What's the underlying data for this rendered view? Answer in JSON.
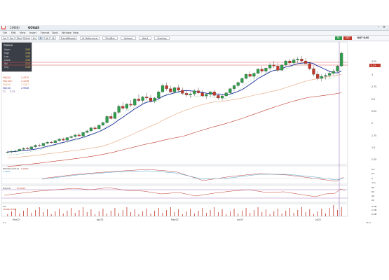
{
  "window": {
    "title": "1(NSK)",
    "symbol": "GOGAS",
    "tabs": [
      "1m",
      "5m",
      "15m",
      "30m",
      "1h",
      "D",
      "W",
      "M"
    ],
    "timeframe": "D",
    "menu": [
      "File",
      "Edit",
      "View",
      "Insert",
      "Format",
      "Tools",
      "Window",
      "Help"
    ]
  },
  "toolbar": {
    "mode_label": "TrendWizard",
    "indicator_labels": [
      "Sr Reference",
      "Tick/Bar",
      "Volume",
      "Alert",
      "Overlay"
    ],
    "right_tag_green": "BL",
    "right_tag_red": "SKT",
    "right_label": "NAT GAS"
  },
  "info_panel": {
    "symbol": "TWAUX",
    "rows": [
      {
        "label": "Open",
        "value": "3.85"
      },
      {
        "label": "High",
        "value": "3.98"
      },
      {
        "label": "Low",
        "value": "3.82"
      },
      {
        "label": "Close",
        "value": "3.95"
      },
      {
        "label": "Vol",
        "value": "3.21"
      },
      {
        "label": "Chg",
        "value": "0.08"
      }
    ]
  },
  "overlay_legend": [
    {
      "label": "MA(20)",
      "value": "2.4375",
      "color": "#d24a2e"
    },
    {
      "label": "MA(100)",
      "value": "2.4258",
      "color": "#c9562e"
    },
    {
      "label": "MA(50)",
      "value": "2.5287",
      "color": "#e09a6a"
    },
    {
      "label": "MA(10)",
      "value": "2.9926",
      "color": "#1a2a9a"
    },
    {
      "label": "T1",
      "value": "3.23",
      "color": "#6a3a9a"
    }
  ],
  "macd_legend": {
    "label": "MACD(12,26,9)",
    "value": "0.0922",
    "color": "#b43a3a",
    "extra": "0.0892"
  },
  "rsi_legend": {
    "label": "RSI(14)",
    "value": "63.9093",
    "color": "#c0392b"
  },
  "vol_legend": {
    "label": "Vol",
    "value": "1009637000",
    "color": "#c0392b"
  },
  "price_axis": [
    "3.25",
    "3",
    "2.75",
    "2.5",
    "2.25",
    "2",
    "1.75",
    "1.5",
    "1.25"
  ],
  "price_tag": {
    "value": "3.23",
    "color": "#c0392b"
  },
  "resistance_tag": {
    "value": "3.26",
    "color": "#e04a4a"
  },
  "macd_axis": [
    "0.2",
    "0.1",
    "0",
    "-0.1"
  ],
  "rsi_axis": [
    "80",
    "60",
    "40",
    "20"
  ],
  "vol_axis": [
    "2.5M",
    "1.5M",
    "0.5M"
  ],
  "date_labels": [
    "Mar22",
    "Apr22",
    "May22",
    "Jun22",
    "Jul22"
  ],
  "footer_left": "2.4",
  "footer_right": "dkc1",
  "chart_data": {
    "type": "candlestick",
    "title": "",
    "xlabel": "",
    "ylabel": "",
    "ylim": [
      1.1,
      3.4
    ],
    "candles": [
      [
        1.32,
        1.35,
        1.3,
        1.33
      ],
      [
        1.33,
        1.36,
        1.31,
        1.34
      ],
      [
        1.34,
        1.37,
        1.32,
        1.35
      ],
      [
        1.35,
        1.4,
        1.34,
        1.38
      ],
      [
        1.38,
        1.42,
        1.36,
        1.4
      ],
      [
        1.4,
        1.43,
        1.38,
        1.39
      ],
      [
        1.39,
        1.44,
        1.38,
        1.43
      ],
      [
        1.43,
        1.48,
        1.41,
        1.46
      ],
      [
        1.46,
        1.49,
        1.43,
        1.45
      ],
      [
        1.45,
        1.51,
        1.44,
        1.5
      ],
      [
        1.5,
        1.54,
        1.48,
        1.52
      ],
      [
        1.52,
        1.55,
        1.49,
        1.51
      ],
      [
        1.51,
        1.56,
        1.5,
        1.55
      ],
      [
        1.55,
        1.6,
        1.53,
        1.58
      ],
      [
        1.58,
        1.61,
        1.54,
        1.56
      ],
      [
        1.56,
        1.62,
        1.55,
        1.61
      ],
      [
        1.61,
        1.65,
        1.59,
        1.63
      ],
      [
        1.63,
        1.68,
        1.61,
        1.66
      ],
      [
        1.66,
        1.7,
        1.63,
        1.64
      ],
      [
        1.64,
        1.72,
        1.63,
        1.71
      ],
      [
        1.71,
        1.76,
        1.69,
        1.74
      ],
      [
        1.74,
        1.82,
        1.72,
        1.8
      ],
      [
        1.8,
        1.84,
        1.76,
        1.78
      ],
      [
        1.78,
        1.86,
        1.77,
        1.85
      ],
      [
        1.85,
        1.92,
        1.83,
        1.9
      ],
      [
        1.9,
        2.05,
        1.88,
        2.02
      ],
      [
        2.02,
        2.08,
        1.96,
        1.98
      ],
      [
        1.98,
        2.12,
        1.97,
        2.1
      ],
      [
        2.1,
        2.25,
        2.06,
        2.22
      ],
      [
        2.22,
        2.3,
        2.15,
        2.18
      ],
      [
        2.18,
        2.28,
        2.14,
        2.26
      ],
      [
        2.26,
        2.34,
        2.2,
        2.24
      ],
      [
        2.24,
        2.38,
        2.22,
        2.36
      ],
      [
        2.36,
        2.45,
        2.3,
        2.33
      ],
      [
        2.33,
        2.42,
        2.28,
        2.4
      ],
      [
        2.4,
        2.48,
        2.34,
        2.38
      ],
      [
        2.38,
        2.44,
        2.3,
        2.32
      ],
      [
        2.32,
        2.4,
        2.28,
        2.38
      ],
      [
        2.38,
        2.52,
        2.36,
        2.5
      ],
      [
        2.5,
        2.66,
        2.48,
        2.62
      ],
      [
        2.62,
        2.68,
        2.52,
        2.56
      ],
      [
        2.56,
        2.62,
        2.48,
        2.5
      ],
      [
        2.5,
        2.6,
        2.46,
        2.58
      ],
      [
        2.58,
        2.64,
        2.5,
        2.53
      ],
      [
        2.53,
        2.58,
        2.44,
        2.47
      ],
      [
        2.47,
        2.52,
        2.4,
        2.44
      ],
      [
        2.44,
        2.5,
        2.38,
        2.46
      ],
      [
        2.46,
        2.55,
        2.42,
        2.52
      ],
      [
        2.52,
        2.58,
        2.45,
        2.48
      ],
      [
        2.48,
        2.53,
        2.4,
        2.42
      ],
      [
        2.42,
        2.48,
        2.36,
        2.45
      ],
      [
        2.45,
        2.52,
        2.4,
        2.5
      ],
      [
        2.5,
        2.54,
        2.4,
        2.43
      ],
      [
        2.43,
        2.47,
        2.34,
        2.38
      ],
      [
        2.38,
        2.45,
        2.33,
        2.42
      ],
      [
        2.42,
        2.5,
        2.4,
        2.48
      ],
      [
        2.48,
        2.58,
        2.45,
        2.56
      ],
      [
        2.56,
        2.64,
        2.52,
        2.62
      ],
      [
        2.62,
        2.7,
        2.58,
        2.68
      ],
      [
        2.68,
        2.78,
        2.66,
        2.76
      ],
      [
        2.76,
        2.86,
        2.74,
        2.84
      ],
      [
        2.84,
        2.9,
        2.78,
        2.8
      ],
      [
        2.8,
        2.88,
        2.76,
        2.86
      ],
      [
        2.86,
        2.96,
        2.84,
        2.94
      ],
      [
        2.94,
        3.0,
        2.86,
        2.9
      ],
      [
        2.9,
        2.98,
        2.86,
        2.96
      ],
      [
        2.96,
        3.06,
        2.92,
        3.02
      ],
      [
        3.02,
        3.1,
        2.96,
        3.0
      ],
      [
        3.0,
        3.06,
        2.88,
        2.92
      ],
      [
        2.92,
        3.04,
        2.9,
        3.02
      ],
      [
        3.02,
        3.12,
        3.0,
        3.1
      ],
      [
        3.1,
        3.14,
        3.02,
        3.06
      ],
      [
        3.06,
        3.16,
        3.04,
        3.12
      ],
      [
        3.12,
        3.18,
        3.06,
        3.14
      ],
      [
        3.14,
        3.2,
        3.08,
        3.1
      ],
      [
        3.1,
        3.16,
        3.02,
        3.05
      ],
      [
        3.05,
        3.08,
        2.92,
        2.95
      ],
      [
        2.95,
        3.0,
        2.8,
        2.84
      ],
      [
        2.84,
        2.9,
        2.72,
        2.76
      ],
      [
        2.76,
        2.84,
        2.7,
        2.8
      ],
      [
        2.8,
        2.86,
        2.74,
        2.82
      ],
      [
        2.82,
        2.9,
        2.78,
        2.86
      ],
      [
        2.86,
        2.94,
        2.82,
        2.9
      ],
      [
        2.9,
        3.02,
        2.88,
        3.0
      ],
      [
        3.0,
        3.28,
        2.98,
        3.25
      ]
    ]
  }
}
